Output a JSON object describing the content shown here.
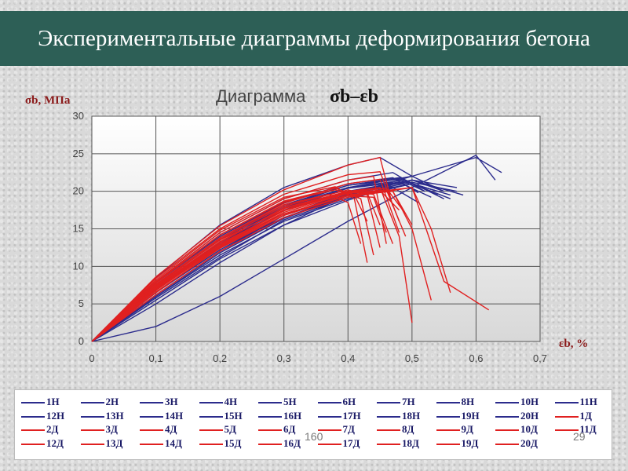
{
  "header": {
    "title": "Экспериментальные диаграммы деформирования бетона"
  },
  "page_number": "160",
  "slide_number": "29",
  "colors": {
    "header_bg": "#2d5f56",
    "blue_series": "#2b2b8c",
    "red_series": "#e02020",
    "plot_bg": "#ffffff"
  },
  "chart_data": {
    "type": "line",
    "title_text": "Диаграмма",
    "title_symbol": "σb–εb",
    "ylabel": "σb, МПа",
    "xlabel": "εb, %",
    "xlim": [
      0,
      0.7
    ],
    "ylim": [
      0,
      30
    ],
    "xticks": [
      "0",
      "0,1",
      "0,2",
      "0,3",
      "0,4",
      "0,5",
      "0,6",
      "0,7"
    ],
    "yticks": [
      "0",
      "5",
      "10",
      "15",
      "20",
      "25",
      "30"
    ],
    "grid": true,
    "legend_position": "bottom",
    "series": [
      {
        "name": "1Н",
        "color": "blue",
        "x": [
          0,
          0.1,
          0.2,
          0.3,
          0.4,
          0.5,
          0.55
        ],
        "y": [
          0,
          7,
          13,
          17.5,
          20.5,
          22,
          20
        ]
      },
      {
        "name": "2Н",
        "color": "blue",
        "x": [
          0,
          0.1,
          0.2,
          0.3,
          0.4,
          0.47,
          0.52
        ],
        "y": [
          0,
          8,
          14.5,
          19,
          21.5,
          22.5,
          20
        ]
      },
      {
        "name": "3Н",
        "color": "blue",
        "x": [
          0,
          0.1,
          0.2,
          0.3,
          0.4,
          0.5,
          0.58
        ],
        "y": [
          0,
          6.5,
          12.5,
          16.5,
          19.5,
          21.5,
          19.5
        ]
      },
      {
        "name": "4Н",
        "color": "blue",
        "x": [
          0,
          0.1,
          0.2,
          0.3,
          0.4,
          0.45,
          0.5
        ],
        "y": [
          0,
          8.5,
          15.5,
          20.5,
          23.5,
          24.5,
          22
        ]
      },
      {
        "name": "5Н",
        "color": "blue",
        "x": [
          0,
          0.1,
          0.2,
          0.3,
          0.4,
          0.5,
          0.56
        ],
        "y": [
          0,
          6,
          11.5,
          16,
          19,
          21,
          19
        ]
      },
      {
        "name": "6Н",
        "color": "blue",
        "x": [
          0,
          0.1,
          0.2,
          0.3,
          0.4,
          0.48,
          0.54
        ],
        "y": [
          0,
          7.5,
          13.5,
          18,
          20.8,
          21.8,
          19.5
        ]
      },
      {
        "name": "7Н",
        "color": "blue",
        "x": [
          0,
          0.1,
          0.2,
          0.3,
          0.4,
          0.5,
          0.6,
          0.63
        ],
        "y": [
          0,
          2,
          6,
          11,
          16,
          20.5,
          24.8,
          21.5
        ]
      },
      {
        "name": "8Н",
        "color": "blue",
        "x": [
          0,
          0.1,
          0.2,
          0.3,
          0.4,
          0.5,
          0.6,
          0.64
        ],
        "y": [
          0,
          5,
          10.5,
          15.5,
          19.5,
          22,
          24.5,
          22.5
        ]
      },
      {
        "name": "10Н",
        "color": "blue",
        "x": [
          0,
          0.1,
          0.2,
          0.3,
          0.4,
          0.5,
          0.57
        ],
        "y": [
          0,
          5.5,
          11,
          15.5,
          18.8,
          21.5,
          20.5
        ]
      },
      {
        "name": "11Н",
        "color": "blue",
        "x": [
          0,
          0.1,
          0.2,
          0.3,
          0.4,
          0.49,
          0.55
        ],
        "y": [
          0,
          7,
          13,
          17.8,
          20.5,
          21.5,
          19
        ]
      },
      {
        "name": "12Н",
        "color": "blue",
        "x": [
          0,
          0.1,
          0.2,
          0.3,
          0.4,
          0.46,
          0.51
        ],
        "y": [
          0,
          7.2,
          13.2,
          18,
          20.5,
          21,
          18.5
        ]
      },
      {
        "name": "13Н",
        "color": "blue",
        "x": [
          0,
          0.1,
          0.2,
          0.3,
          0.4,
          0.48,
          0.53
        ],
        "y": [
          0,
          6.8,
          12.8,
          17.5,
          20,
          21.2,
          19.2
        ]
      },
      {
        "name": "14Н",
        "color": "blue",
        "x": [
          0,
          0.1,
          0.2,
          0.3,
          0.4,
          0.5,
          0.55
        ],
        "y": [
          0,
          6.2,
          12,
          16.8,
          19.8,
          21.5,
          20
        ]
      },
      {
        "name": "15Н",
        "color": "blue",
        "x": [
          0,
          0.1,
          0.2,
          0.3,
          0.4,
          0.47,
          0.51
        ],
        "y": [
          0,
          7.8,
          14,
          18.5,
          21,
          21.8,
          19.8
        ]
      },
      {
        "name": "16Н",
        "color": "blue",
        "x": [
          0,
          0.1,
          0.2,
          0.3,
          0.4,
          0.5,
          0.56
        ],
        "y": [
          0,
          5.8,
          11.2,
          16.2,
          19.2,
          21,
          19.5
        ]
      },
      {
        "name": "17Н",
        "color": "blue",
        "x": [
          0,
          0.1,
          0.2,
          0.3,
          0.4,
          0.49,
          0.54
        ],
        "y": [
          0,
          7,
          13.2,
          17.8,
          20.4,
          21.3,
          20
        ]
      },
      {
        "name": "18Н",
        "color": "blue",
        "x": [
          0,
          0.1,
          0.2,
          0.3,
          0.4,
          0.5,
          0.57
        ],
        "y": [
          0,
          6.5,
          12.2,
          16.8,
          19.6,
          21.2,
          20
        ]
      },
      {
        "name": "19Н",
        "color": "blue",
        "x": [
          0,
          0.1,
          0.2,
          0.3,
          0.4,
          0.48,
          0.52
        ],
        "y": [
          0,
          7.4,
          13.6,
          18.2,
          20.8,
          21.6,
          20
        ]
      },
      {
        "name": "20Н",
        "color": "blue",
        "x": [
          0,
          0.1,
          0.2,
          0.3,
          0.4,
          0.5,
          0.54
        ],
        "y": [
          0,
          6,
          11.8,
          16.4,
          19.4,
          21,
          20
        ]
      },
      {
        "name": "1Д",
        "color": "red",
        "x": [
          0,
          0.1,
          0.2,
          0.3,
          0.4,
          0.45,
          0.48,
          0.5
        ],
        "y": [
          0,
          7.5,
          13.5,
          17.5,
          20,
          20.5,
          14,
          2.5
        ]
      },
      {
        "name": "2Д",
        "color": "red",
        "x": [
          0,
          0.1,
          0.2,
          0.3,
          0.4,
          0.47,
          0.5,
          0.53
        ],
        "y": [
          0,
          7,
          13,
          17,
          19.5,
          20,
          15,
          5.5
        ]
      },
      {
        "name": "3Д",
        "color": "red",
        "x": [
          0,
          0.1,
          0.2,
          0.3,
          0.4,
          0.5,
          0.53,
          0.56
        ],
        "y": [
          0,
          6.5,
          12.5,
          16.8,
          19.5,
          20.5,
          15,
          6.5
        ]
      },
      {
        "name": "4Д",
        "color": "red",
        "x": [
          0,
          0.1,
          0.2,
          0.3,
          0.4,
          0.5,
          0.55,
          0.62
        ],
        "y": [
          0,
          6.2,
          12,
          16.5,
          19.2,
          20.5,
          8,
          4.2
        ]
      },
      {
        "name": "5Д",
        "color": "red",
        "x": [
          0,
          0.1,
          0.2,
          0.3,
          0.4,
          0.44,
          0.46
        ],
        "y": [
          0,
          8,
          14.5,
          19,
          21.5,
          22,
          13
        ]
      },
      {
        "name": "6Д",
        "color": "red",
        "x": [
          0,
          0.1,
          0.2,
          0.3,
          0.4,
          0.45,
          0.48
        ],
        "y": [
          0,
          7.6,
          13.8,
          18.4,
          21,
          21.6,
          14.5
        ]
      },
      {
        "name": "7Д",
        "color": "red",
        "x": [
          0,
          0.1,
          0.2,
          0.3,
          0.38,
          0.41,
          0.43
        ],
        "y": [
          0,
          8.2,
          14.8,
          19.2,
          20.6,
          19,
          10.5
        ]
      },
      {
        "name": "8Д",
        "color": "red",
        "x": [
          0,
          0.1,
          0.2,
          0.3,
          0.38,
          0.42,
          0.44
        ],
        "y": [
          0,
          7.8,
          14.2,
          18.6,
          20.2,
          19,
          11.5
        ]
      },
      {
        "name": "9Д",
        "color": "red",
        "x": [
          0,
          0.1,
          0.2,
          0.3,
          0.4,
          0.43,
          0.45
        ],
        "y": [
          0,
          7.4,
          13.6,
          18,
          20.2,
          19.5,
          12.5
        ]
      },
      {
        "name": "10Д",
        "color": "red",
        "x": [
          0,
          0.1,
          0.2,
          0.3,
          0.4,
          0.44,
          0.47
        ],
        "y": [
          0,
          7.2,
          13.2,
          17.8,
          20,
          19.6,
          13
        ]
      },
      {
        "name": "11Д",
        "color": "red",
        "x": [
          0,
          0.1,
          0.2,
          0.3,
          0.4,
          0.46,
          0.49
        ],
        "y": [
          0,
          7,
          12.8,
          17.4,
          19.8,
          20.2,
          14
        ]
      },
      {
        "name": "12Д",
        "color": "red",
        "x": [
          0,
          0.1,
          0.2,
          0.3,
          0.4,
          0.45,
          0.48
        ],
        "y": [
          0,
          8.4,
          15,
          19.6,
          22.2,
          22.6,
          16
        ]
      },
      {
        "name": "13Д",
        "color": "red",
        "x": [
          0,
          0.1,
          0.2,
          0.3,
          0.37,
          0.4,
          0.42
        ],
        "y": [
          0,
          7.6,
          13.8,
          18.2,
          19.6,
          18.5,
          13
        ]
      },
      {
        "name": "14Д",
        "color": "red",
        "x": [
          0,
          0.1,
          0.2,
          0.3,
          0.4,
          0.44,
          0.46
        ],
        "y": [
          0,
          6.8,
          12.6,
          17,
          19.4,
          19.2,
          14.5
        ]
      },
      {
        "name": "15Д",
        "color": "red",
        "x": [
          0,
          0.1,
          0.2,
          0.3,
          0.4,
          0.45,
          0.47
        ],
        "y": [
          0,
          8.6,
          15.4,
          20.2,
          23.5,
          24.5,
          18
        ]
      },
      {
        "name": "16Д",
        "color": "red",
        "x": [
          0,
          0.1,
          0.2,
          0.3,
          0.4,
          0.47,
          0.5
        ],
        "y": [
          0,
          6.6,
          12.4,
          16.8,
          19.4,
          20,
          15.5
        ]
      },
      {
        "name": "17Д",
        "color": "red",
        "x": [
          0,
          0.1,
          0.2,
          0.3,
          0.4,
          0.43,
          0.45
        ],
        "y": [
          0,
          7.3,
          13.3,
          17.7,
          20,
          19.8,
          15.5
        ]
      },
      {
        "name": "18Д",
        "color": "red",
        "x": [
          0,
          0.1,
          0.2,
          0.3,
          0.38,
          0.41,
          0.43
        ],
        "y": [
          0,
          7.9,
          14.2,
          18.7,
          20.4,
          19.5,
          16
        ]
      },
      {
        "name": "19Д",
        "color": "red",
        "x": [
          0,
          0.1,
          0.2,
          0.3,
          0.4,
          0.46,
          0.49
        ],
        "y": [
          0,
          7.1,
          13,
          17.4,
          19.9,
          20.4,
          17
        ]
      },
      {
        "name": "20Д",
        "color": "red",
        "x": [
          0,
          0.1,
          0.2,
          0.3,
          0.4,
          0.45,
          0.48
        ],
        "y": [
          0,
          6.9,
          12.7,
          17.2,
          19.7,
          20.1,
          17.5
        ]
      }
    ]
  }
}
